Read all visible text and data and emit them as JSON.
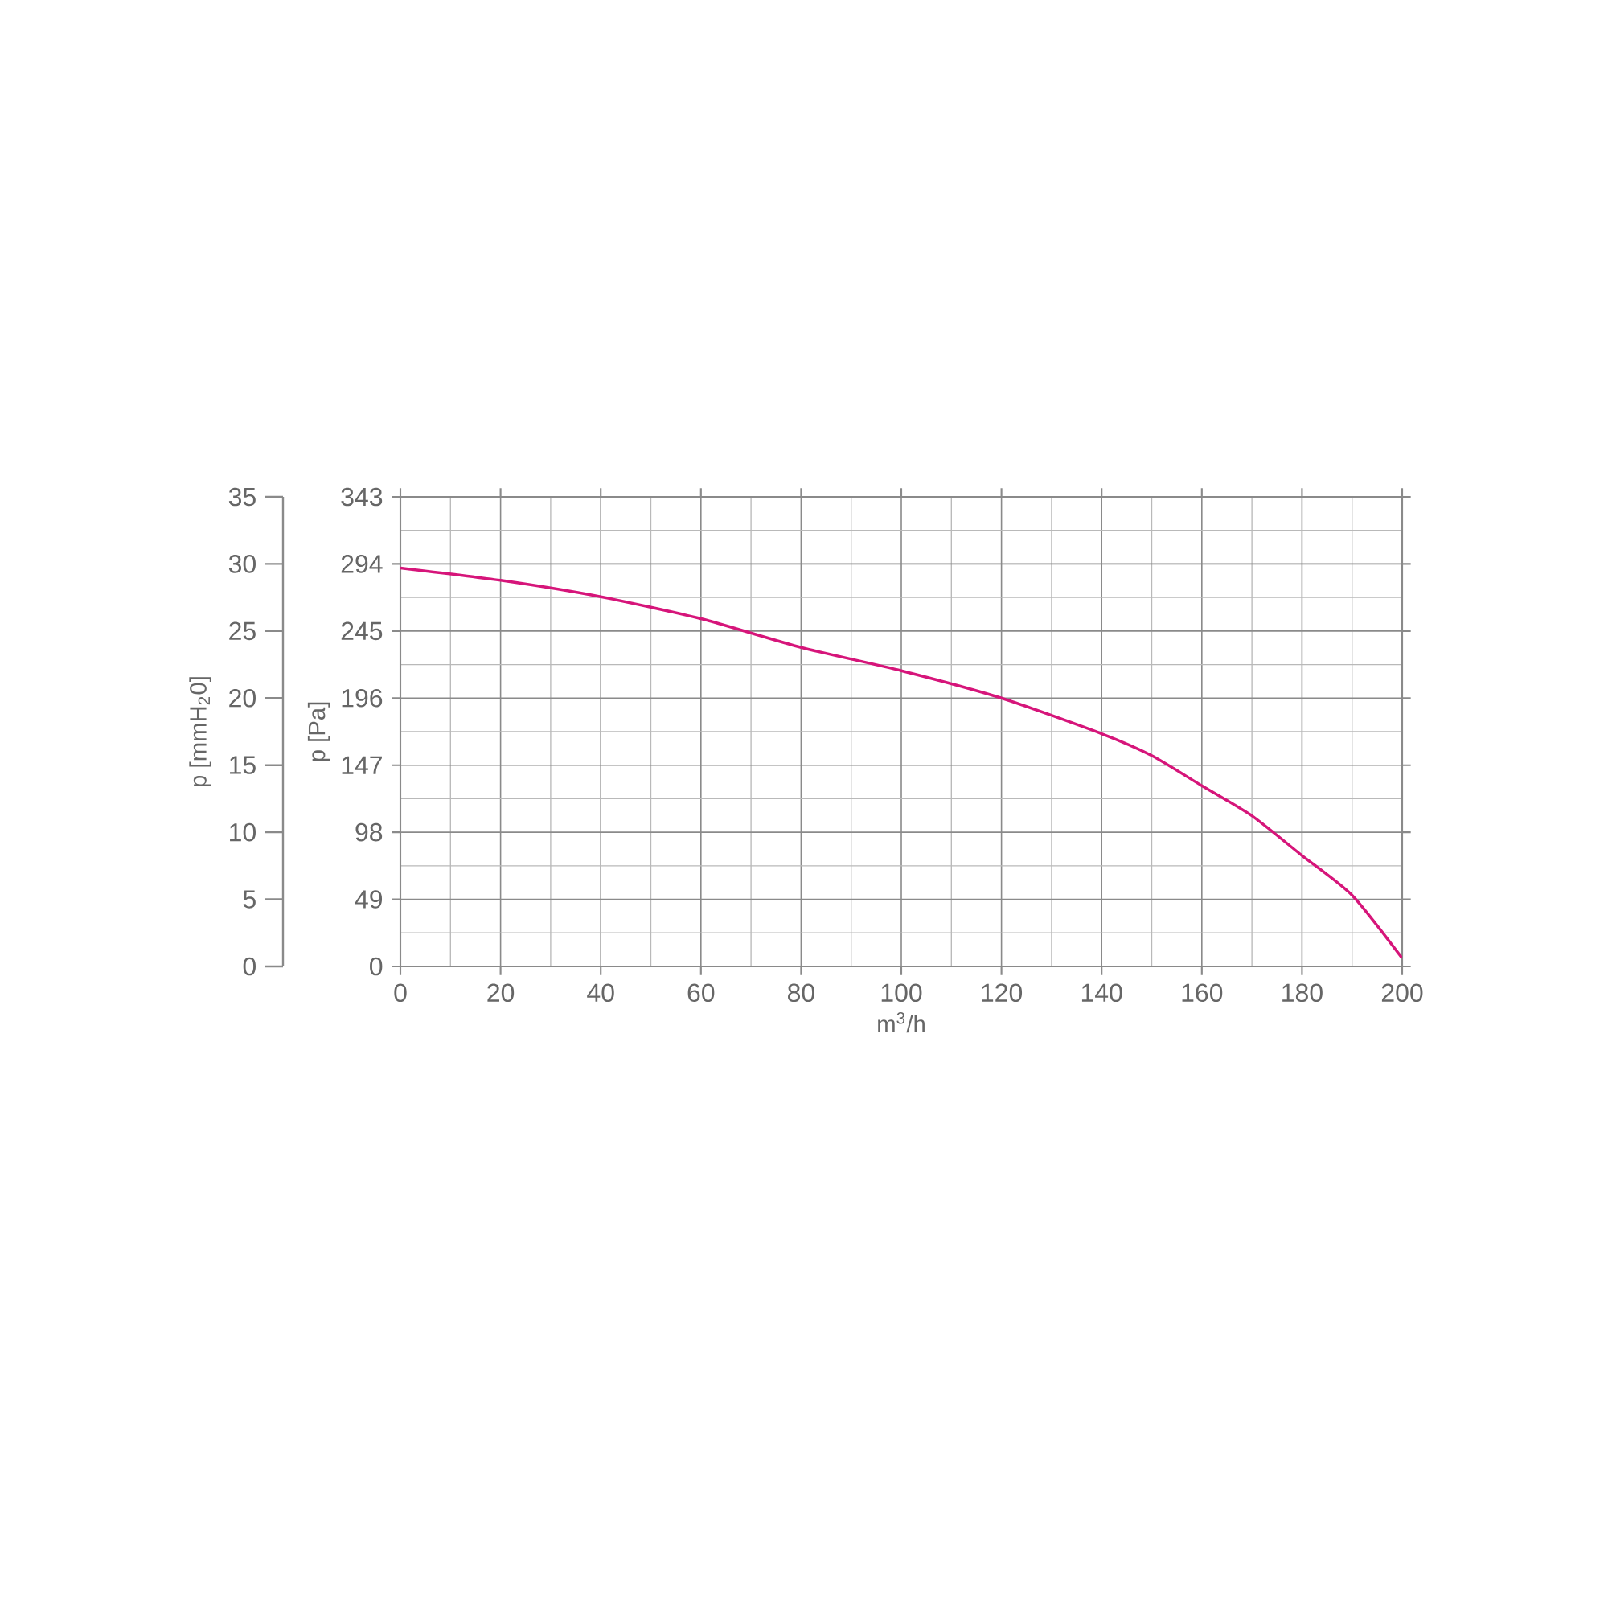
{
  "chart_data": {
    "type": "line",
    "xlabel": "m$^{3}$/h",
    "ylabel": "p [Pa]",
    "y2label": "p [mmH$_{2}$0]",
    "x": [
      0,
      20,
      40,
      60,
      80,
      100,
      120,
      140,
      150,
      160,
      170,
      180,
      190,
      200
    ],
    "series": [
      {
        "color": "#d6157a",
        "values": [
          291,
          282,
          270,
          254,
          233,
          216,
          196,
          170,
          154,
          132,
          110,
          81,
          52,
          6
        ]
      }
    ],
    "xlim": [
      0,
      200
    ],
    "xticks": [
      0,
      20,
      40,
      60,
      80,
      100,
      120,
      140,
      160,
      180,
      200
    ],
    "ylim": [
      0,
      343
    ],
    "yticks": [
      0,
      49,
      98,
      147,
      196,
      245,
      294,
      343
    ],
    "y2lim": [
      0,
      35
    ],
    "y2ticks": [
      0,
      5,
      10,
      15,
      20,
      25,
      30,
      35
    ],
    "grid": true,
    "marker": "none",
    "line_style": "solid"
  }
}
